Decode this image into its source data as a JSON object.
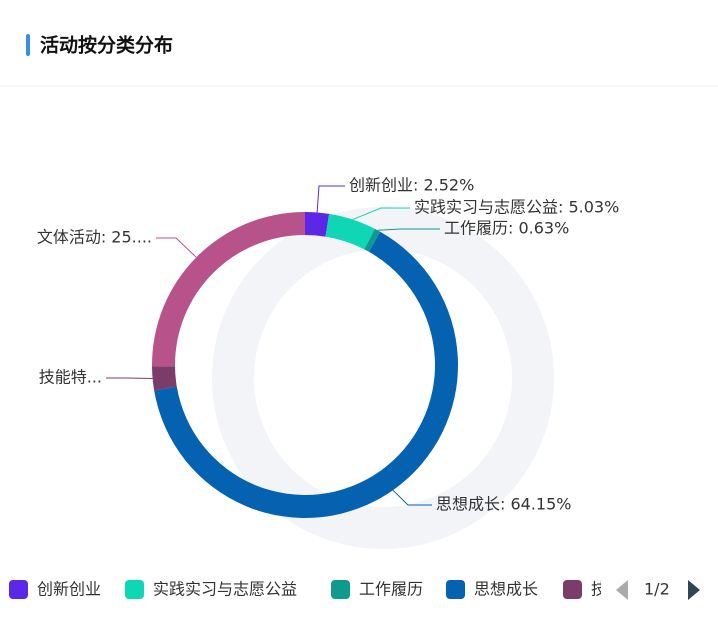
{
  "chart_data": {
    "type": "pie",
    "title": "活动按分类分布",
    "values": [
      2.52,
      5.03,
      0.63,
      64.15,
      2.52,
      25.15
    ],
    "value_labels": [
      "创新创业: 2.52%",
      "实践实习与志愿公益: 5.03%",
      "工作履历: 0.63%",
      "思想成长: 64.15%",
      "技能特...",
      "文体活动: 25...."
    ],
    "colors": [
      "#5a28e6",
      "#0fd6b5",
      "#0e9a8c",
      "#0562b0",
      "#7c3c6a",
      "#b8528a"
    ],
    "legend": [
      "创新创业",
      "实践实习与志愿公益",
      "工作履历",
      "思想成长",
      "技"
    ],
    "legend_page": "1/2"
  }
}
